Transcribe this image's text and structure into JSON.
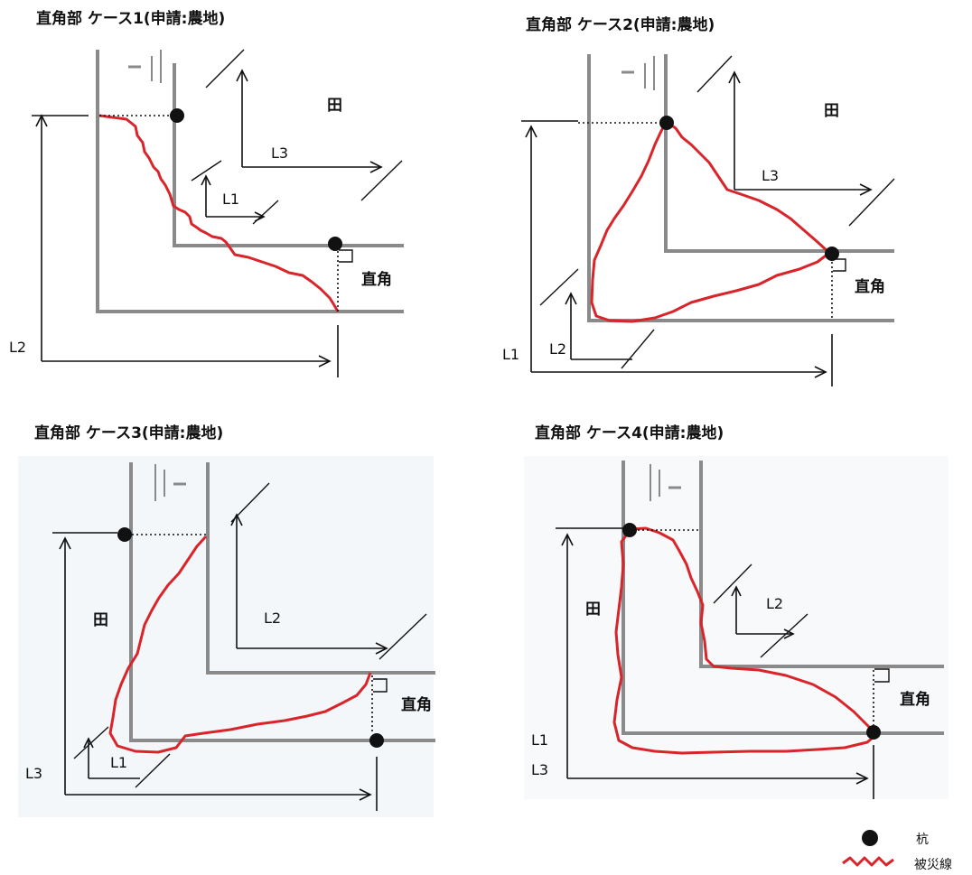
{
  "panels": [
    {
      "title": "直角部 ケース1(申請:農地)",
      "labels": {
        "L1": "L1",
        "L2": "L2",
        "L3": "L3",
        "field": "田",
        "right_angle": "直角"
      }
    },
    {
      "title": "直角部 ケース2(申請:農地)",
      "labels": {
        "L1": "L1",
        "L2": "L2",
        "L3": "L3",
        "field": "田",
        "right_angle": "直角"
      }
    },
    {
      "title": "直角部 ケース3(申請:農地)",
      "labels": {
        "L1": "L1",
        "L2": "L2",
        "L3": "L3",
        "field": "田",
        "right_angle": "直角"
      }
    },
    {
      "title": "直角部 ケース4(申請:農地)",
      "labels": {
        "L1": "L1",
        "L2": "L2",
        "L3": "L3",
        "field": "田",
        "right_angle": "直角"
      }
    }
  ],
  "legend": {
    "stake": "杭",
    "damage_line": "被災線"
  },
  "colors": {
    "damage_line": "#d9242a",
    "wall": "#8a8a8a",
    "stake": "#111111"
  }
}
